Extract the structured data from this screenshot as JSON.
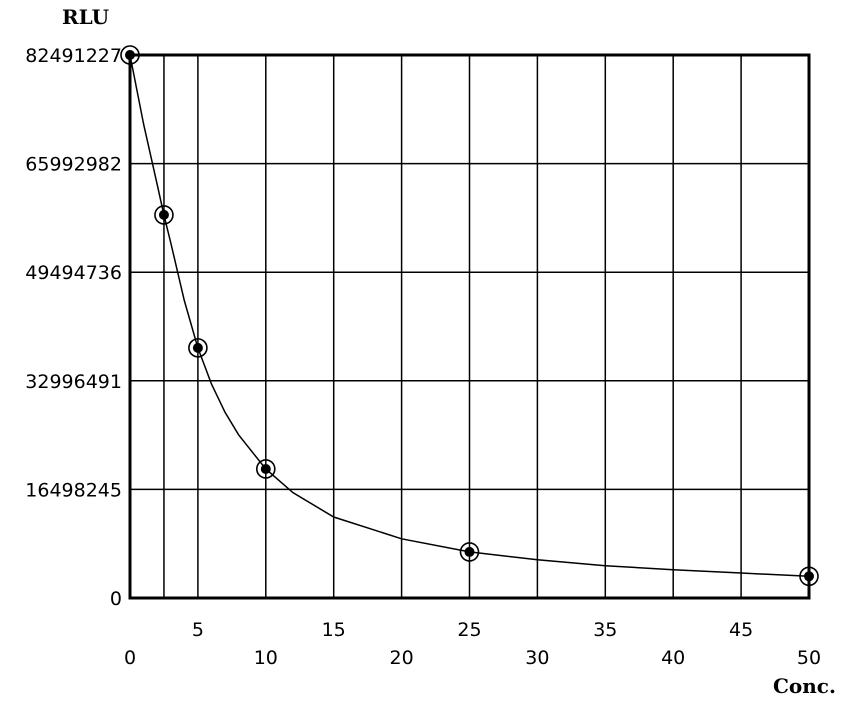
{
  "chart_data": {
    "type": "scatter",
    "title": "",
    "xlabel": "Conc.",
    "ylabel": "RLU",
    "xlim": [
      0,
      50
    ],
    "ylim": [
      0,
      82491227
    ],
    "grid": true,
    "legend": "none",
    "y_ticks": [
      {
        "value": 0,
        "label": "0"
      },
      {
        "value": 16498245,
        "label": "16498245"
      },
      {
        "value": 32996491,
        "label": "32996491"
      },
      {
        "value": 49494736,
        "label": "49494736"
      },
      {
        "value": 65992982,
        "label": "65992982"
      },
      {
        "value": 82491227,
        "label": "82491227"
      }
    ],
    "x_ticks_upper": [
      {
        "value": 5,
        "label": "5"
      },
      {
        "value": 15,
        "label": "15"
      },
      {
        "value": 25,
        "label": "25"
      },
      {
        "value": 35,
        "label": "35"
      },
      {
        "value": 45,
        "label": "45"
      }
    ],
    "x_ticks_lower": [
      {
        "value": 0,
        "label": "0"
      },
      {
        "value": 10,
        "label": "10"
      },
      {
        "value": 20,
        "label": "20"
      },
      {
        "value": 30,
        "label": "30"
      },
      {
        "value": 40,
        "label": "40"
      },
      {
        "value": 50,
        "label": "50"
      }
    ],
    "x_gridlines": [
      2.5,
      5,
      10,
      15,
      20,
      25,
      30,
      35,
      40,
      45
    ],
    "points": [
      {
        "x": 0,
        "y": 82491227
      },
      {
        "x": 2.5,
        "y": 58200000
      },
      {
        "x": 5,
        "y": 38000000
      },
      {
        "x": 10,
        "y": 19600000
      },
      {
        "x": 25,
        "y": 7000000
      },
      {
        "x": 50,
        "y": 3300000
      }
    ],
    "curve": {
      "x": [
        0,
        1,
        2,
        2.5,
        3,
        4,
        5,
        6,
        7,
        8,
        10,
        12,
        15,
        20,
        25,
        30,
        35,
        40,
        45,
        50
      ],
      "y": [
        82491227,
        72000000,
        62800000,
        58200000,
        54000000,
        45200000,
        38000000,
        32500000,
        28200000,
        24800000,
        19600000,
        16000000,
        12300000,
        9000000,
        7000000,
        5800000,
        4900000,
        4300000,
        3800000,
        3300000
      ]
    },
    "colors": {
      "line": "#000000",
      "background": "#ffffff"
    }
  }
}
